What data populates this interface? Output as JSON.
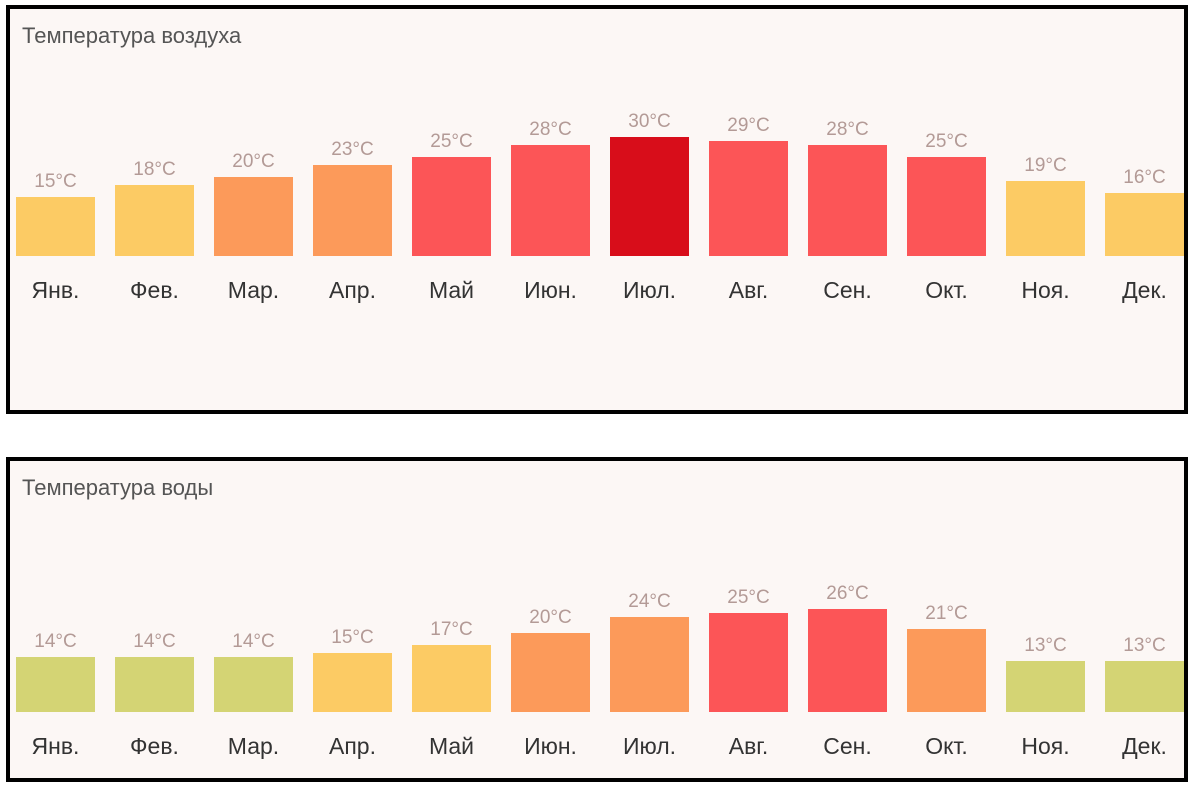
{
  "chart_data": [
    {
      "type": "bar",
      "title": "Температура воздуха",
      "categories": [
        "Янв.",
        "Фев.",
        "Мар.",
        "Апр.",
        "Май",
        "Июн.",
        "Июл.",
        "Авг.",
        "Сен.",
        "Окт.",
        "Ноя.",
        "Дек."
      ],
      "values": [
        15,
        18,
        20,
        23,
        25,
        28,
        30,
        29,
        28,
        25,
        19,
        16
      ],
      "value_labels": [
        "15°C",
        "18°C",
        "20°C",
        "23°C",
        "25°C",
        "28°C",
        "30°C",
        "29°C",
        "28°C",
        "25°C",
        "19°C",
        "16°C"
      ],
      "colors": [
        "#fccb64",
        "#fccb64",
        "#fc9a5a",
        "#fc9a5a",
        "#fc5557",
        "#fc5557",
        "#d80d1a",
        "#fc5557",
        "#fc5557",
        "#fc5557",
        "#fccb64",
        "#fccb64"
      ],
      "grid": false,
      "legend": "none"
    },
    {
      "type": "bar",
      "title": "Температура воды",
      "categories": [
        "Янв.",
        "Фев.",
        "Мар.",
        "Апр.",
        "Май",
        "Июн.",
        "Июл.",
        "Авг.",
        "Сен.",
        "Окт.",
        "Ноя.",
        "Дек."
      ],
      "values": [
        14,
        14,
        14,
        15,
        17,
        20,
        24,
        25,
        26,
        21,
        13,
        13
      ],
      "value_labels": [
        "14°C",
        "14°C",
        "14°C",
        "15°C",
        "17°C",
        "20°C",
        "24°C",
        "25°C",
        "26°C",
        "21°C",
        "13°C",
        "13°C"
      ],
      "colors": [
        "#d4d474",
        "#d4d474",
        "#d4d474",
        "#fccb64",
        "#fccb64",
        "#fc9a5a",
        "#fc9a5a",
        "#fc5557",
        "#fc5557",
        "#fc9a5a",
        "#d4d474",
        "#d4d474"
      ],
      "grid": false,
      "legend": "none"
    }
  ]
}
